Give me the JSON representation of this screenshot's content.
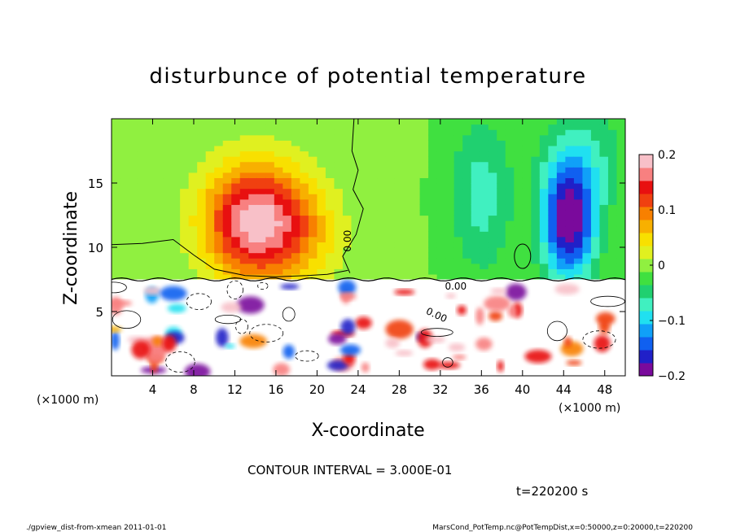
{
  "chart_data": {
    "type": "heatmap",
    "title": "disturbunce of potential temperature",
    "xlabel": "X-coordinate",
    "ylabel": "Z-coordinate",
    "x_unit": "(×1000 m)",
    "xlim": [
      0,
      50
    ],
    "ylim": [
      0,
      20
    ],
    "x_ticks": [
      "4",
      "8",
      "12",
      "16",
      "20",
      "24",
      "28",
      "32",
      "36",
      "40",
      "44",
      "48"
    ],
    "y_ticks": [
      "5",
      "10",
      "15"
    ],
    "colorbar": {
      "range": [
        -0.2,
        0.2
      ],
      "tick_labels": [
        "0.2",
        "0.1",
        "0",
        "−0.1",
        "−0.2"
      ],
      "colors": [
        "#7a0a9c",
        "#2020c8",
        "#1060f0",
        "#10a0f8",
        "#20e0f0",
        "#40f0c0",
        "#20d070",
        "#40e040",
        "#90f040",
        "#e0f020",
        "#f8e000",
        "#f8b000",
        "#f88000",
        "#f04010",
        "#e81010",
        "#f88080",
        "#f8c0c8"
      ]
    },
    "contour_labels": [
      "0.00",
      "0.00",
      "0.00"
    ],
    "contour_interval": "CONTOUR INTERVAL = 3.000E-01",
    "time": "t=220200 s",
    "field": {
      "upper_background": -0.01,
      "boundary_z": 7.5,
      "features": [
        {
          "x": 14,
          "z": 12,
          "sx": 5,
          "sz": 4.5,
          "amp": 0.2
        },
        {
          "x": 44.5,
          "z": 12,
          "sx": 2.6,
          "sz": 4.5,
          "amp": -0.19
        },
        {
          "x": 36,
          "z": 14,
          "sx": 3,
          "sz": 6,
          "amp": -0.06
        },
        {
          "x": 46,
          "z": 17,
          "sx": 4,
          "sz": 4,
          "amp": -0.05
        },
        {
          "x": 19,
          "z": 11,
          "sx": 4,
          "sz": 4,
          "amp": 0.04
        }
      ]
    }
  },
  "footer": {
    "left": "./gpview_dist-from-xmean  2011-01-01",
    "right": "MarsCond_PotTemp.nc@PotTempDist,x=0:50000,z=0:20000,t=220200"
  }
}
